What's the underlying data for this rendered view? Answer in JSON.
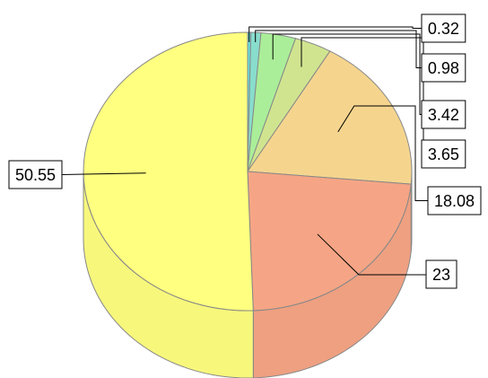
{
  "chart_data": {
    "type": "pie",
    "style": "3d",
    "labels": [
      "0.32",
      "0.98",
      "3.42",
      "3.65",
      "18.08",
      "23",
      "50.55"
    ],
    "values": [
      0.32,
      0.98,
      3.42,
      3.65,
      18.08,
      23,
      50.55
    ],
    "colors": [
      "#66dddd",
      "#88ddcc",
      "#aaee99",
      "#d0e490",
      "#f5d58e",
      "#f5a585",
      "#ffff80"
    ],
    "legend": "none",
    "grid": false
  }
}
